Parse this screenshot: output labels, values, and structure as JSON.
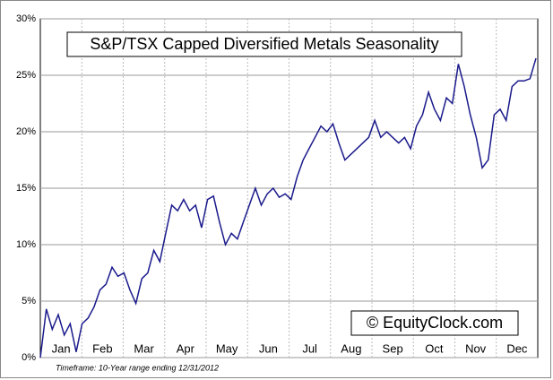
{
  "chart_data": {
    "type": "line",
    "title": "S&P/TSX Capped Diversified Metals Seasonality",
    "watermark": "© EquityClock.com",
    "footnote": "Timeframe: 10-Year range ending 12/31/2012",
    "months": [
      "Jan",
      "Feb",
      "Mar",
      "Apr",
      "May",
      "Jun",
      "Jul",
      "Aug",
      "Sep",
      "Oct",
      "Nov",
      "Dec"
    ],
    "values": [
      0,
      4.3,
      2.5,
      3.8,
      2.0,
      3.0,
      0.5,
      3.0,
      3.5,
      4.5,
      6.0,
      6.5,
      8.0,
      7.2,
      7.5,
      6.0,
      4.8,
      7.0,
      7.5,
      9.5,
      8.5,
      11.0,
      13.5,
      13.0,
      14.0,
      13.0,
      13.5,
      11.5,
      14.0,
      14.3,
      12.0,
      10.0,
      11.0,
      10.5,
      12.0,
      13.5,
      15.0,
      13.5,
      14.5,
      15.0,
      14.2,
      14.5,
      14.0,
      16.0,
      17.5,
      18.5,
      19.5,
      20.5,
      20.0,
      20.7,
      19.0,
      17.5,
      18.0,
      18.5,
      19.0,
      19.5,
      21.0,
      19.5,
      20.0,
      19.5,
      19.0,
      19.5,
      18.5,
      20.5,
      21.5,
      23.5,
      22.0,
      21.0,
      23.0,
      22.5,
      26.0,
      24.0,
      21.5,
      19.5,
      16.8,
      17.5,
      21.5,
      22.0,
      21.0,
      24.0,
      24.5,
      24.5,
      24.7,
      26.5
    ],
    "color": "#1a1a8c",
    "ylim": [
      0,
      30
    ],
    "yticks": [
      {
        "value": 0,
        "label": "0%"
      },
      {
        "value": 5,
        "label": "5%"
      },
      {
        "value": 10,
        "label": "10%"
      },
      {
        "value": 15,
        "label": "15%"
      },
      {
        "value": 20,
        "label": "20%"
      },
      {
        "value": 25,
        "label": "25%"
      },
      {
        "value": 30,
        "label": "30%"
      }
    ],
    "grid": true
  }
}
